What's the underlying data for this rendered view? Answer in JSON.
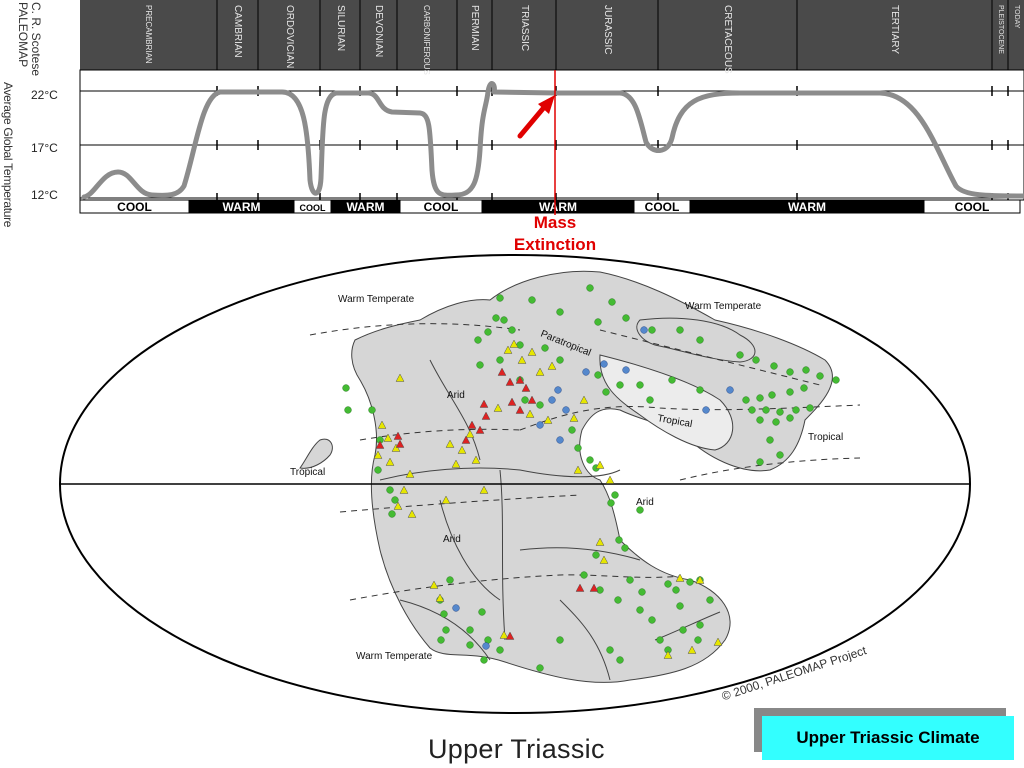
{
  "credit": "C. R. Scotese PALEOMAP",
  "y_axis_title": "Average Global Temperature",
  "chart_data": {
    "type": "line",
    "title": "",
    "ylabel": "Average Global Temperature",
    "ticks": [
      "22°C",
      "17°C",
      "12°C"
    ],
    "y_ticks_values": [
      22,
      17,
      12
    ],
    "periods": [
      "PRECAMBRIAN",
      "CAMBRIAN",
      "ORDOVICIAN",
      "SILURIAN",
      "DEVONIAN",
      "CARBONIFEROUS",
      "PERMIAN",
      "TRIASSIC",
      "JURASSIC",
      "CRETACEOUS",
      "TERTIARY",
      "PLEISTOCENE",
      "TODAY"
    ],
    "climate_bands": [
      {
        "label": "COOL",
        "tone": "light"
      },
      {
        "label": "WARM",
        "tone": "dark"
      },
      {
        "label": "COOL",
        "tone": "light"
      },
      {
        "label": "WARM",
        "tone": "dark"
      },
      {
        "label": "COOL",
        "tone": "light"
      },
      {
        "label": "WARM",
        "tone": "dark"
      },
      {
        "label": "COOL",
        "tone": "light"
      },
      {
        "label": "WARM",
        "tone": "dark"
      },
      {
        "label": "COOL",
        "tone": "light"
      }
    ]
  },
  "annotation": {
    "mass_extinction": "Mass\nExtinction"
  },
  "map": {
    "title": "Upper Triassic",
    "copyright": "© 2000, PALEOMAP Project",
    "labels": [
      "Warm Temperate",
      "Warm Temperate",
      "Paratropical",
      "Arid",
      "Tropical",
      "Tropical",
      "Tropical",
      "Arid",
      "Arid",
      "Warm Temperate"
    ]
  },
  "caption": "Upper Triassic Climate",
  "colors": {
    "header": "#4a4a4a",
    "curve": "#8c8c8c",
    "extinction": "#e00000",
    "land": "#d6d6d6",
    "green_dot": "#44bb33",
    "yellow_tri": "#e6e600",
    "red_tri": "#dd2222",
    "blue_dot": "#5588cc",
    "caption_bg": "#33ffff"
  }
}
